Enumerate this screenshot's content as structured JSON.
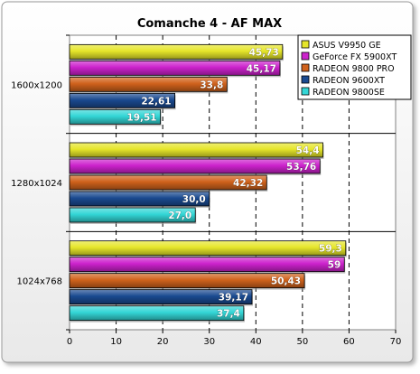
{
  "chart_data": {
    "type": "bar",
    "orientation": "horizontal",
    "title": "Comanche 4  -  AF MAX",
    "xlabel": "",
    "ylabel": "",
    "xlim": [
      0,
      70
    ],
    "x_ticks": [
      "0",
      "10",
      "20",
      "30",
      "40",
      "50",
      "60",
      "70"
    ],
    "grid": "vertical dashed",
    "legend_position": "top-right",
    "categories": [
      "1600x1200",
      "1280x1024",
      "1024x768"
    ],
    "series": [
      {
        "name": "ASUS V9950 GE",
        "color": "#e6e62a",
        "values": [
          45.73,
          54.4,
          59.3
        ],
        "labels": [
          "45,73",
          "54,4",
          "59,3"
        ]
      },
      {
        "name": "GeForce FX 5900XT",
        "color": "#cc22cc",
        "values": [
          45.17,
          53.76,
          59
        ],
        "labels": [
          "45,17",
          "53,76",
          "59"
        ]
      },
      {
        "name": "RADEON 9800 PRO",
        "color": "#d0621c",
        "values": [
          33.8,
          42.32,
          50.43
        ],
        "labels": [
          "33,8",
          "42,32",
          "50,43"
        ]
      },
      {
        "name": "RADEON 9600XT",
        "color": "#1a4a90",
        "values": [
          22.61,
          30.0,
          39.17
        ],
        "labels": [
          "22,61",
          "30,0",
          "39,17"
        ]
      },
      {
        "name": "RADEON 9800SE",
        "color": "#33d6d6",
        "values": [
          19.51,
          27.0,
          37.4
        ],
        "labels": [
          "19,51",
          "27,0",
          "37,4"
        ]
      }
    ]
  }
}
